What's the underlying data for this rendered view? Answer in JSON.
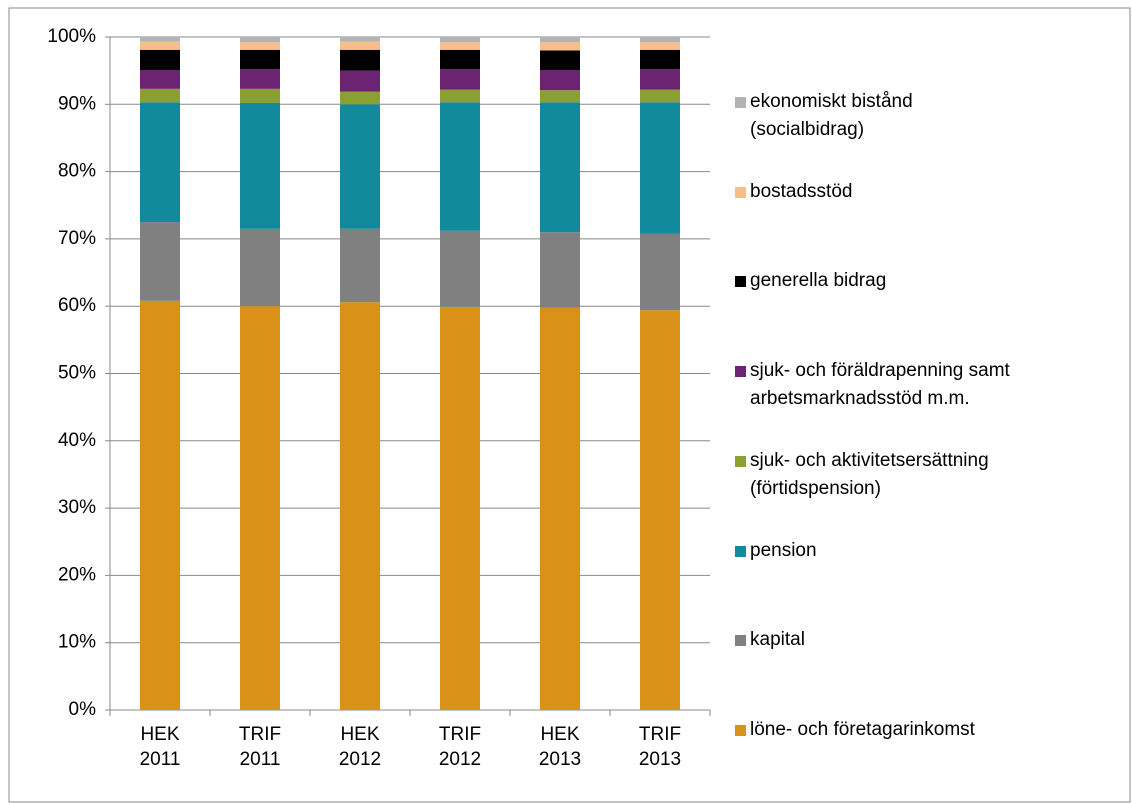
{
  "chart_data": {
    "type": "stacked_bar_100",
    "categories": [
      "HEK 2011",
      "TRIF 2011",
      "HEK 2012",
      "TRIF 2012",
      "HEK 2013",
      "TRIF 2013"
    ],
    "series": [
      {
        "name": "löne- och företagarinkomst",
        "color": "#d99118",
        "values": [
          60.8,
          60.0,
          60.6,
          59.9,
          59.8,
          59.4
        ]
      },
      {
        "name": "kapital",
        "color": "#808080",
        "values": [
          11.7,
          11.5,
          10.9,
          11.3,
          11.2,
          11.4
        ]
      },
      {
        "name": "pension",
        "color": "#13899e",
        "values": [
          17.8,
          18.7,
          18.5,
          19.1,
          19.3,
          19.5
        ]
      },
      {
        "name": "sjuk- och aktivitetsersättning\n(förtidspension)",
        "color": "#8aa033",
        "values": [
          2.0,
          2.1,
          1.9,
          1.9,
          1.8,
          1.9
        ]
      },
      {
        "name": "sjuk- och föräldrapenning samt\narbetsmarknadsstöd m.m.",
        "color": "#6b2372",
        "values": [
          2.8,
          2.9,
          3.1,
          3.0,
          3.0,
          3.0
        ]
      },
      {
        "name": "generella bidrag",
        "color": "#000000",
        "values": [
          3.0,
          2.9,
          3.1,
          2.9,
          2.9,
          2.9
        ]
      },
      {
        "name": "bostadsstöd",
        "color": "#f9be88",
        "values": [
          1.2,
          1.1,
          1.2,
          1.1,
          1.2,
          1.1
        ]
      },
      {
        "name": "ekonomiskt bistånd\n(socialbidrag)",
        "color": "#b3b3b3",
        "values": [
          0.7,
          0.8,
          0.7,
          0.8,
          0.8,
          0.8
        ]
      }
    ],
    "ylim": [
      0,
      100
    ],
    "yticks": [
      {
        "value": 0,
        "label": "0%"
      },
      {
        "value": 10,
        "label": "10%"
      },
      {
        "value": 20,
        "label": "20%"
      },
      {
        "value": 30,
        "label": "30%"
      },
      {
        "value": 40,
        "label": "40%"
      },
      {
        "value": 50,
        "label": "50%"
      },
      {
        "value": 60,
        "label": "60%"
      },
      {
        "value": 70,
        "label": "70%"
      },
      {
        "value": 80,
        "label": "80%"
      },
      {
        "value": 90,
        "label": "90%"
      },
      {
        "value": 100,
        "label": "100%"
      }
    ],
    "grid": true,
    "legend": "right"
  }
}
